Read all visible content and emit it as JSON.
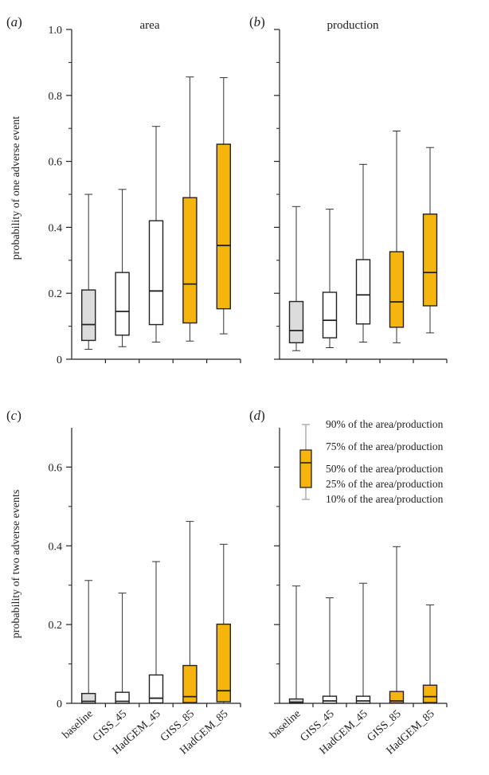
{
  "chart_data": [
    {
      "panel": "a",
      "type": "box",
      "title": "area",
      "ylabel": "probability of one adverse event",
      "ylim": [
        0,
        1.0
      ],
      "yticks": [
        0,
        0.2,
        0.4,
        0.6,
        0.8,
        1.0
      ],
      "yticklabels": [
        "0",
        "0.2",
        "0.4",
        "0.6",
        "0.8",
        "1.0"
      ],
      "categories": [
        "baseline",
        "GISS_45",
        "HadGEM_45",
        "GISS_85",
        "HadGEM_85"
      ],
      "fills": [
        "#dcdcdc",
        "#ffffff",
        "#ffffff",
        "#f5b50e",
        "#f5b50e"
      ],
      "boxes": [
        {
          "p10": 0.03,
          "p25": 0.057,
          "p50": 0.105,
          "p75": 0.21,
          "p90": 0.5
        },
        {
          "p10": 0.038,
          "p25": 0.073,
          "p50": 0.145,
          "p75": 0.263,
          "p90": 0.515
        },
        {
          "p10": 0.052,
          "p25": 0.105,
          "p50": 0.207,
          "p75": 0.42,
          "p90": 0.706
        },
        {
          "p10": 0.055,
          "p25": 0.11,
          "p50": 0.228,
          "p75": 0.49,
          "p90": 0.856
        },
        {
          "p10": 0.077,
          "p25": 0.153,
          "p50": 0.345,
          "p75": 0.652,
          "p90": 0.854
        }
      ]
    },
    {
      "panel": "b",
      "type": "box",
      "title": "production",
      "ylabel": "",
      "ylim": [
        0,
        1.0
      ],
      "yticks": [
        0,
        0.2,
        0.4,
        0.6,
        0.8,
        1.0
      ],
      "yticklabels": [],
      "categories": [
        "baseline",
        "GISS_45",
        "HadGEM_45",
        "GISS_85",
        "HadGEM_85"
      ],
      "fills": [
        "#dcdcdc",
        "#ffffff",
        "#ffffff",
        "#f5b50e",
        "#f5b50e"
      ],
      "boxes": [
        {
          "p10": 0.026,
          "p25": 0.05,
          "p50": 0.087,
          "p75": 0.175,
          "p90": 0.463
        },
        {
          "p10": 0.035,
          "p25": 0.065,
          "p50": 0.118,
          "p75": 0.203,
          "p90": 0.455
        },
        {
          "p10": 0.052,
          "p25": 0.107,
          "p50": 0.195,
          "p75": 0.302,
          "p90": 0.591
        },
        {
          "p10": 0.05,
          "p25": 0.097,
          "p50": 0.174,
          "p75": 0.326,
          "p90": 0.692
        },
        {
          "p10": 0.08,
          "p25": 0.162,
          "p50": 0.263,
          "p75": 0.44,
          "p90": 0.642
        }
      ]
    },
    {
      "panel": "c",
      "type": "box",
      "title": "",
      "ylabel": "probability of two adverse events",
      "ylim": [
        0,
        0.7
      ],
      "yticks": [
        0,
        0.2,
        0.4,
        0.6
      ],
      "yticklabels": [
        "0",
        "0.2",
        "0.4",
        "0.6"
      ],
      "categories": [
        "baseline",
        "GISS_45",
        "HadGEM_45",
        "GISS_85",
        "HadGEM_85"
      ],
      "fills": [
        "#dcdcdc",
        "#ffffff",
        "#ffffff",
        "#f5b50e",
        "#f5b50e"
      ],
      "boxes": [
        {
          "p10": 0.0,
          "p25": 0.0,
          "p50": 0.005,
          "p75": 0.025,
          "p90": 0.312
        },
        {
          "p10": 0.0,
          "p25": 0.0,
          "p50": 0.005,
          "p75": 0.028,
          "p90": 0.28
        },
        {
          "p10": 0.0,
          "p25": 0.001,
          "p50": 0.013,
          "p75": 0.072,
          "p90": 0.36
        },
        {
          "p10": 0.0,
          "p25": 0.002,
          "p50": 0.017,
          "p75": 0.096,
          "p90": 0.462
        },
        {
          "p10": 0.0,
          "p25": 0.004,
          "p50": 0.032,
          "p75": 0.201,
          "p90": 0.404
        }
      ]
    },
    {
      "panel": "d",
      "type": "box",
      "title": "",
      "ylabel": "",
      "ylim": [
        0,
        0.7
      ],
      "yticks": [
        0,
        0.2,
        0.4,
        0.6
      ],
      "yticklabels": [],
      "categories": [
        "baseline",
        "GISS_45",
        "HadGEM_45",
        "GISS_85",
        "HadGEM_85"
      ],
      "fills": [
        "#dcdcdc",
        "#ffffff",
        "#ffffff",
        "#f5b50e",
        "#f5b50e"
      ],
      "boxes": [
        {
          "p10": 0.0,
          "p25": 0.0,
          "p50": 0.003,
          "p75": 0.011,
          "p90": 0.298
        },
        {
          "p10": 0.0,
          "p25": 0.0,
          "p50": 0.006,
          "p75": 0.018,
          "p90": 0.268
        },
        {
          "p10": 0.0,
          "p25": 0.0,
          "p50": 0.006,
          "p75": 0.018,
          "p90": 0.305
        },
        {
          "p10": 0.0,
          "p25": 0.001,
          "p50": 0.006,
          "p75": 0.03,
          "p90": 0.398
        },
        {
          "p10": 0.0,
          "p25": 0.002,
          "p50": 0.017,
          "p75": 0.046,
          "p90": 0.25
        }
      ]
    }
  ],
  "legend": {
    "fill": "#f5b50e",
    "whisker_color": "#999999",
    "entries": [
      "90% of the area/production",
      "75% of the area/production",
      "50% of the area/production",
      "25% of the area/production",
      "10% of the area/production"
    ]
  }
}
